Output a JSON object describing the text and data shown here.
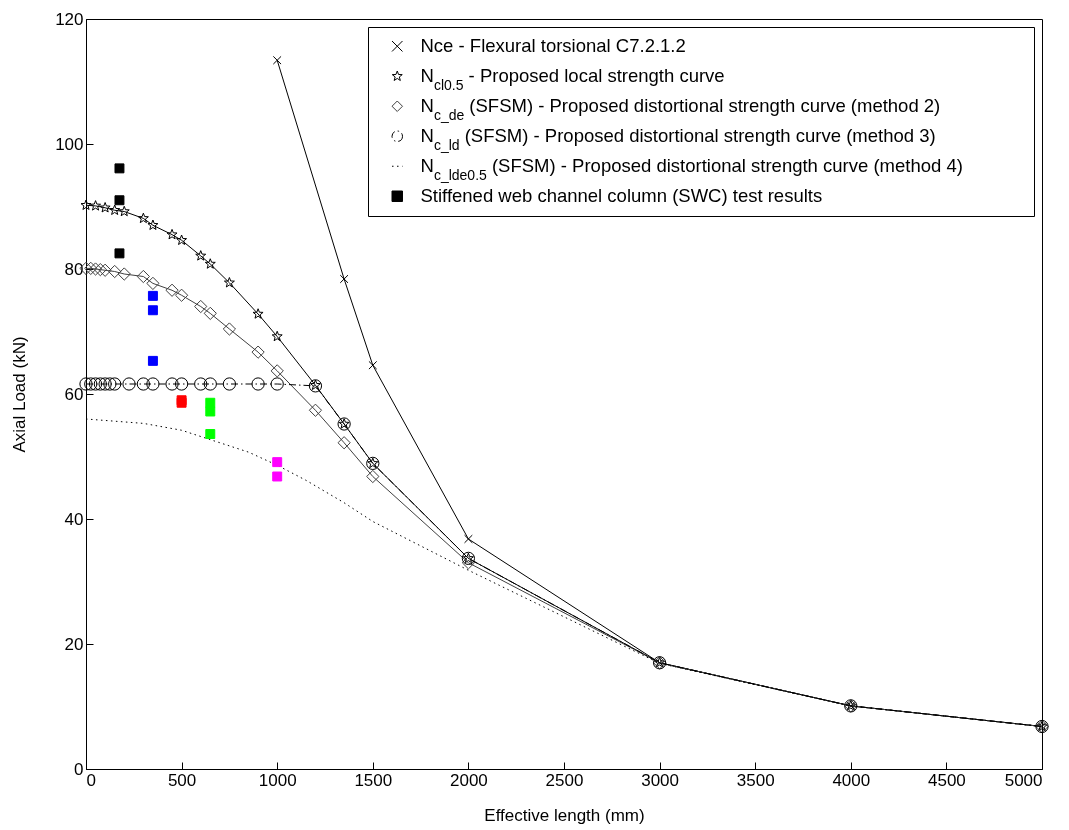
{
  "chart_data": {
    "type": "line",
    "xlabel": "Effective length (mm)",
    "ylabel": "Axial Load (kN)",
    "xlim": [
      0,
      5000
    ],
    "ylim": [
      0,
      120
    ],
    "xticks": [
      0,
      500,
      1000,
      1500,
      2000,
      2500,
      3000,
      3500,
      4000,
      4500,
      5000
    ],
    "yticks": [
      0,
      20,
      40,
      60,
      80,
      100,
      120
    ],
    "grid": false,
    "legend": "top right",
    "series": [
      {
        "name": "Nce - Flexural torsional C7.2.1.2",
        "type": "line",
        "color": "#000000",
        "marker": "cross",
        "line_style": "solid",
        "x": [
          1000,
          1350,
          1500,
          2000,
          3000,
          4000,
          5000
        ],
        "values": [
          113.4,
          78.4,
          64.6,
          36.8,
          17,
          10.1,
          6.8
        ]
      },
      {
        "name": "N$_{cl0.5}$ - Proposed local strength curve",
        "type": "line",
        "color": "#000000",
        "marker": "star",
        "line_style": "solid",
        "x": [
          0,
          50,
          100,
          150,
          200,
          300,
          350,
          450,
          500,
          600,
          650,
          750,
          900,
          1000,
          1200,
          1350,
          1500,
          2000,
          3000,
          4000,
          5000
        ],
        "values": [
          90.2,
          90.1,
          89.8,
          89.4,
          89.2,
          88.1,
          87.0,
          85.5,
          84.6,
          82.1,
          80.8,
          77.8,
          72.8,
          69.2,
          61.4,
          55.2,
          48.9,
          33.7,
          17,
          10.1,
          6.8
        ]
      },
      {
        "name": "N$_{c_de}$ (SFSM) - Proposed distortional strength curve (method 2)",
        "type": "line",
        "color": "#404040",
        "marker": "diamond",
        "line_style": "solid",
        "x": [
          0,
          25,
          50,
          75,
          100,
          150,
          200,
          300,
          350,
          450,
          500,
          600,
          650,
          750,
          900,
          1000,
          1200,
          1350,
          1500,
          2000,
          3000,
          4000,
          5000
        ],
        "values": [
          80.1,
          80.1,
          80.0,
          79.9,
          79.8,
          79.6,
          79.2,
          78.8,
          77.7,
          76.6,
          75.8,
          74.0,
          72.9,
          70.4,
          66.7,
          63.7,
          57.4,
          52.2,
          46.8,
          33.0,
          17,
          10.1,
          6.8
        ]
      },
      {
        "name": "N$_{c_ld}$ (SFSM) - Proposed distortional strength curve (method 3)",
        "type": "line",
        "color": "#000000",
        "marker": "circle",
        "line_style": "dashed",
        "x": [
          0,
          25,
          50,
          75,
          100,
          125,
          150,
          225,
          300,
          350,
          450,
          500,
          600,
          650,
          750,
          900,
          1000,
          1200,
          1350,
          1500,
          2000,
          3000,
          4000,
          5000
        ],
        "values": [
          61.6,
          61.6,
          61.6,
          61.6,
          61.6,
          61.6,
          61.6,
          61.6,
          61.6,
          61.6,
          61.6,
          61.6,
          61.6,
          61.6,
          61.6,
          61.6,
          61.6,
          61.3,
          55.2,
          48.9,
          33.7,
          17,
          10.1,
          6.8
        ]
      },
      {
        "name": "N$_{c_lde0.5}$ (SFSM) - Proposed distortional strength curve (method 4)",
        "type": "line",
        "color": "#000000",
        "marker": "none",
        "line_style": "dotted",
        "x": [
          0,
          300,
          500,
          650,
          850,
          1000,
          1150,
          1350,
          1500,
          2000,
          3000,
          4000,
          5000
        ],
        "values": [
          56.0,
          55.3,
          54.2,
          52.7,
          50.7,
          48.6,
          46.2,
          42.6,
          39.6,
          31.8,
          16.9,
          10.1,
          6.8
        ]
      },
      {
        "name": "Stiffened web channel column (SWC) test results",
        "type": "scatter",
        "color": "#000000",
        "marker": "square",
        "x": [
          175,
          175,
          175,
          350,
          350,
          350,
          500,
          500,
          650,
          650,
          650,
          1000,
          1000
        ],
        "values": [
          96.1,
          91.0,
          82.5,
          75.7,
          73.4,
          65.3,
          59.0,
          58.6,
          58.6,
          57.2,
          53.6,
          49.1,
          46.8
        ],
        "colors": [
          "#000000",
          "#000000",
          "#000000",
          "#0000ff",
          "#0000ff",
          "#0000ff",
          "#ff0000",
          "#ff0000",
          "#00ff00",
          "#00ff00",
          "#00ff00",
          "#ff00ff",
          "#ff00ff"
        ]
      }
    ]
  }
}
